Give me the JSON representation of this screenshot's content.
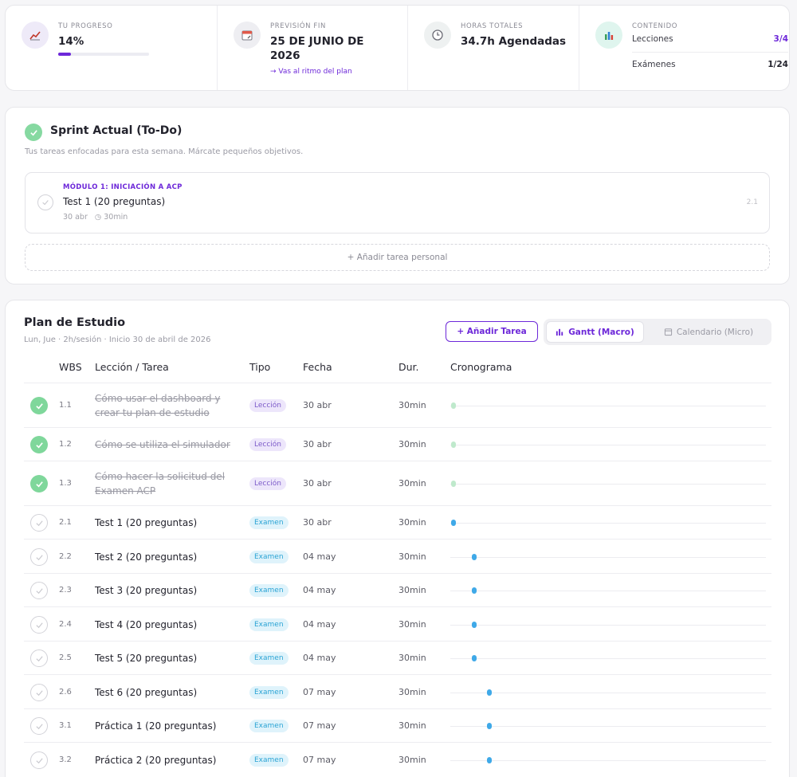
{
  "stats": {
    "progress": {
      "label": "Tu progreso",
      "value": "14%",
      "fraction": 0.14,
      "color": "#6d28d9"
    },
    "forecast": {
      "label": "Previsión fin",
      "value_line1": "25 DE JUNIO DE",
      "value_line2": "2026",
      "note": "→ Vas al ritmo del plan"
    },
    "hours": {
      "label": "Horas totales",
      "value": "34.7h Agendadas"
    },
    "content": {
      "label": "Contenido",
      "lessons_label": "Lecciones",
      "lessons_value": "3/4",
      "exams_label": "Exámenes",
      "exams_value": "1/24"
    }
  },
  "sprint": {
    "title": "Sprint Actual (To-Do)",
    "subtitle": "Tus tareas enfocadas para esta semana. Márcate pequeños objetivos.",
    "task": {
      "module": "Módulo 1: Iniciación a ACP",
      "name": "Test 1 (20 preguntas)",
      "date": "30 abr",
      "duration": "30min",
      "wbs": "2.1"
    },
    "add_personal": "+  Añadir tarea personal"
  },
  "plan": {
    "title": "Plan de Estudio",
    "subtitle": "Lun, Jue · 2h/sesión · Inicio 30 de abril de 2026",
    "add_task": "+  Añadir Tarea",
    "view_gantt": "Gantt (Macro)",
    "view_calendar": "Calendario (Micro)",
    "columns": {
      "wbs": "WBS",
      "task": "Lección / Tarea",
      "type": "Tipo",
      "date": "Fecha",
      "duration": "Dur.",
      "timeline": "Cronograma"
    },
    "colors": {
      "lesson_done": "#7fd79b",
      "exam_bar": "#3fa9e8"
    },
    "rows": [
      {
        "done": true,
        "wbs": "1.1",
        "name": "Cómo usar el dashboard y crear tu plan de estudio",
        "type": "Lección",
        "date": "30 abr",
        "duration": "30min",
        "day_offset": 0
      },
      {
        "done": true,
        "wbs": "1.2",
        "name": "Cómo se utiliza el simulador",
        "type": "Lección",
        "date": "30 abr",
        "duration": "30min",
        "day_offset": 0
      },
      {
        "done": true,
        "wbs": "1.3",
        "name": "Cómo hacer la solicitud del Examen ACP",
        "type": "Lección",
        "date": "30 abr",
        "duration": "30min",
        "day_offset": 0
      },
      {
        "done": false,
        "wbs": "2.1",
        "name": "Test 1 (20 preguntas)",
        "type": "Examen",
        "date": "30 abr",
        "duration": "30min",
        "day_offset": 0
      },
      {
        "done": false,
        "wbs": "2.2",
        "name": "Test 2 (20 preguntas)",
        "type": "Examen",
        "date": "04 may",
        "duration": "30min",
        "day_offset": 4
      },
      {
        "done": false,
        "wbs": "2.3",
        "name": "Test 3 (20 preguntas)",
        "type": "Examen",
        "date": "04 may",
        "duration": "30min",
        "day_offset": 4
      },
      {
        "done": false,
        "wbs": "2.4",
        "name": "Test 4 (20 preguntas)",
        "type": "Examen",
        "date": "04 may",
        "duration": "30min",
        "day_offset": 4
      },
      {
        "done": false,
        "wbs": "2.5",
        "name": "Test 5 (20 preguntas)",
        "type": "Examen",
        "date": "04 may",
        "duration": "30min",
        "day_offset": 4
      },
      {
        "done": false,
        "wbs": "2.6",
        "name": "Test 6 (20 preguntas)",
        "type": "Examen",
        "date": "07 may",
        "duration": "30min",
        "day_offset": 7
      },
      {
        "done": false,
        "wbs": "3.1",
        "name": "Práctica 1 (20 preguntas)",
        "type": "Examen",
        "date": "07 may",
        "duration": "30min",
        "day_offset": 7
      },
      {
        "done": false,
        "wbs": "3.2",
        "name": "Práctica 2 (20 preguntas)",
        "type": "Examen",
        "date": "07 may",
        "duration": "30min",
        "day_offset": 7
      }
    ]
  }
}
